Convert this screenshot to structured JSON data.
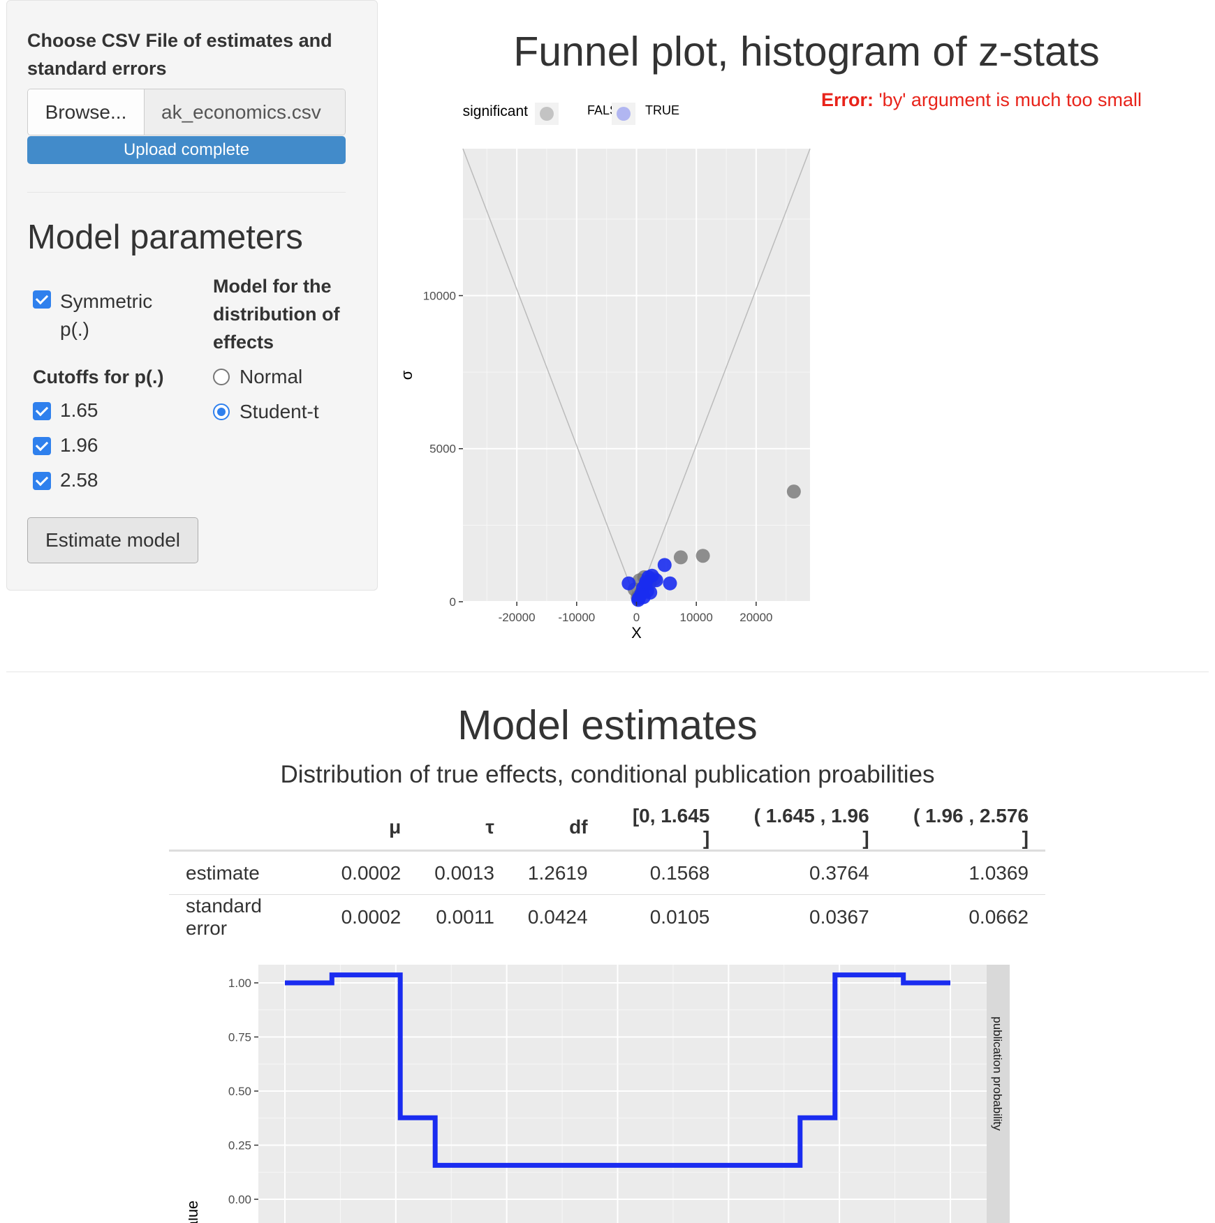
{
  "sidebar": {
    "file_label": "Choose CSV File of estimates and standard errors",
    "browse_label": "Browse...",
    "file_name": "ak_economics.csv",
    "upload_status": "Upload complete",
    "params_title": "Model parameters",
    "symmetric_label": "Symmetric p(.)",
    "symmetric_checked": true,
    "cutoffs_label": "Cutoffs for p(.)",
    "cutoffs": [
      {
        "label": "1.65",
        "checked": true
      },
      {
        "label": "1.96",
        "checked": true
      },
      {
        "label": "2.58",
        "checked": true
      }
    ],
    "distribution_label": "Model for the distribution of effects",
    "distribution_options": [
      {
        "label": "Normal",
        "selected": false
      },
      {
        "label": "Student-t",
        "selected": true
      }
    ],
    "estimate_button": "Estimate model"
  },
  "funnel": {
    "title": "Funnel plot, histogram of z-stats",
    "error_prefix": "Error:",
    "error_text": "'by' argument is much too small"
  },
  "estimates": {
    "title": "Model estimates",
    "subtitle": "Distribution of true effects, conditional publication proabilities",
    "table": {
      "headers": [
        "",
        "μ",
        "τ",
        "df",
        "[0, 1.645 ]",
        "( 1.645 , 1.96 ]",
        "( 1.96 , 2.576 ]"
      ],
      "rows": [
        [
          "estimate",
          "0.0002",
          "0.0013",
          "1.2619",
          "0.1568",
          "0.3764",
          "1.0369"
        ],
        [
          "standard error",
          "0.0002",
          "0.0011",
          "0.0424",
          "0.0105",
          "0.0367",
          "0.0662"
        ]
      ]
    }
  },
  "chart_data": [
    {
      "type": "scatter",
      "title": "",
      "xlabel": "X",
      "ylabel": "σ",
      "xlim": [
        -29000,
        29000
      ],
      "ylim": [
        0,
        14800
      ],
      "x_ticks": [
        -20000,
        -10000,
        0,
        10000,
        20000
      ],
      "x_tick_labels": [
        "-20000",
        "-10000",
        "0",
        "10000",
        "20000"
      ],
      "y_ticks": [
        0,
        5000,
        10000
      ],
      "y_tick_labels": [
        "0",
        "5000",
        "10000"
      ],
      "grid": true,
      "legend": {
        "title": "significant",
        "position": "top",
        "entries": [
          "FALSE",
          "TRUE"
        ]
      },
      "colors": {
        "FALSE": "#6e6e6e",
        "TRUE": "#1a2cf0",
        "funnel": "#bbbbbb",
        "panel": "#ebebeb"
      },
      "funnel_lines": {
        "slope_x_per_sigma": 1.96,
        "top_sigma": 14800
      },
      "series": [
        {
          "name": "FALSE",
          "points": [
            [
              26300,
              3600
            ],
            [
              11100,
              1500
            ],
            [
              7400,
              1450
            ],
            [
              500,
              700
            ],
            [
              1300,
              800
            ],
            [
              -300,
              400
            ],
            [
              800,
              300
            ],
            [
              2200,
              600
            ],
            [
              3000,
              750
            ],
            [
              200,
              150
            ]
          ]
        },
        {
          "name": "TRUE",
          "points": [
            [
              4700,
              1200
            ],
            [
              5600,
              600
            ],
            [
              -1300,
              600
            ],
            [
              2000,
              800
            ],
            [
              2600,
              850
            ],
            [
              1500,
              550
            ],
            [
              1800,
              350
            ],
            [
              800,
              250
            ],
            [
              400,
              120
            ],
            [
              1100,
              450
            ],
            [
              3300,
              700
            ],
            [
              2300,
              300
            ],
            [
              1200,
              150
            ],
            [
              300,
              60
            ],
            [
              1600,
              650
            ]
          ]
        }
      ]
    },
    {
      "type": "line",
      "title": "",
      "ylabel": "value",
      "facet_label": "publication probability",
      "ylim": [
        0,
        1.0
      ],
      "y_ticks": [
        0,
        0.25,
        0.5,
        0.75,
        1.0
      ],
      "y_tick_labels": [
        "0.00",
        "0.25",
        "0.50",
        "0.75",
        "1.00"
      ],
      "xlim": [
        -3.0,
        3.0
      ],
      "grid": true,
      "colors": {
        "line": "#1a2cf0",
        "panel": "#ebebeb",
        "strip": "#d9d9d9"
      },
      "series": [
        {
          "points": [
            [
              -3.0,
              1.0
            ],
            [
              -2.576,
              1.0
            ],
            [
              -2.576,
              1.0369
            ],
            [
              -1.96,
              1.0369
            ],
            [
              -1.96,
              0.3764
            ],
            [
              -1.645,
              0.3764
            ],
            [
              -1.645,
              0.1568
            ],
            [
              1.645,
              0.1568
            ],
            [
              1.645,
              0.3764
            ],
            [
              1.96,
              0.3764
            ],
            [
              1.96,
              1.0369
            ],
            [
              2.576,
              1.0369
            ],
            [
              2.576,
              1.0
            ],
            [
              3.0,
              1.0
            ]
          ]
        }
      ]
    }
  ]
}
